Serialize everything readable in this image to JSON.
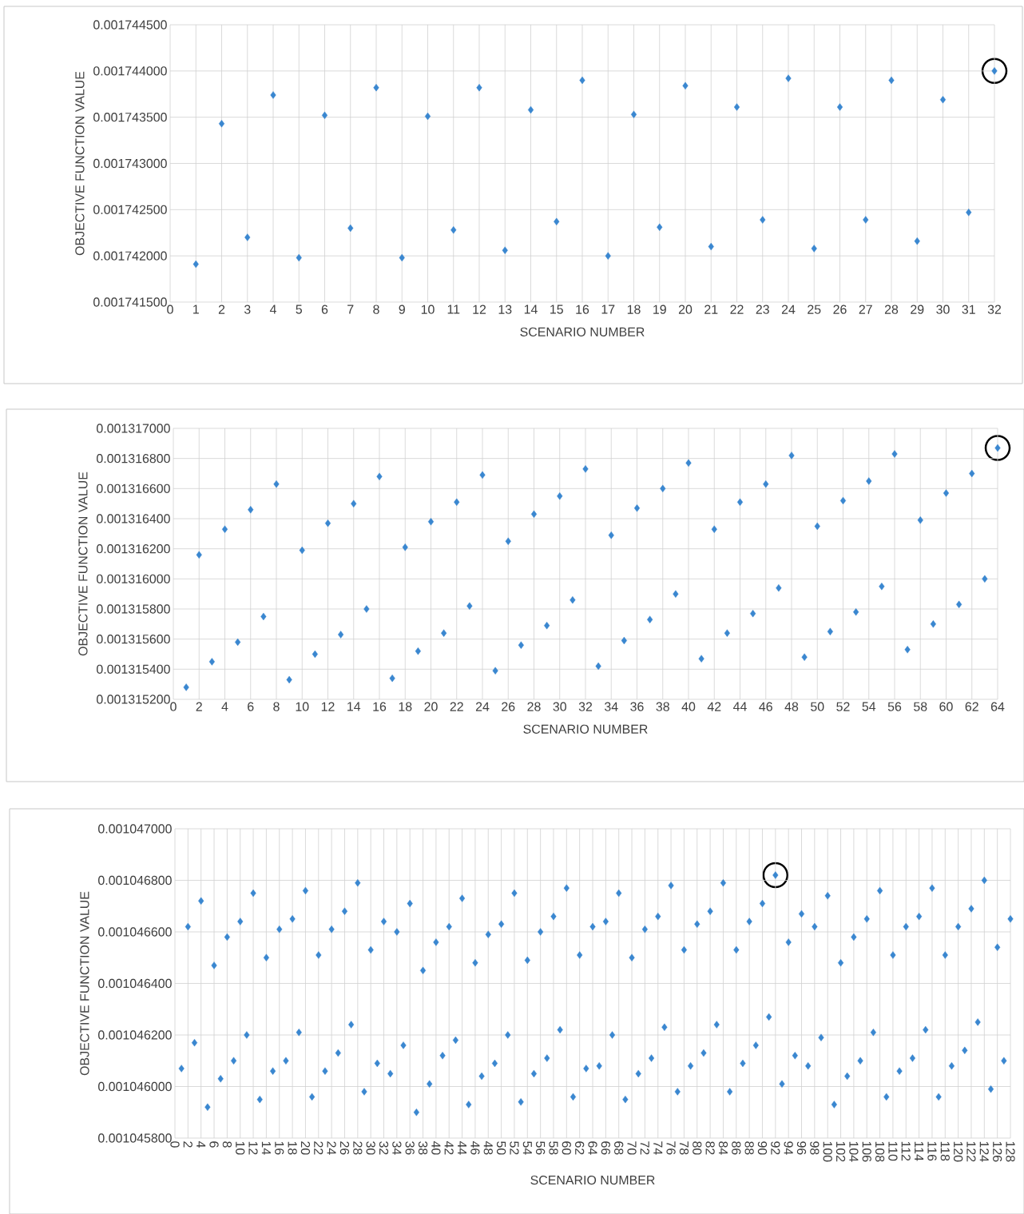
{
  "chart_data": [
    {
      "type": "scatter",
      "xlabel": "SCENARIO NUMBER",
      "ylabel": "OBJECTIVE FUNCTION VALUE",
      "grid": true,
      "marker": "diamond",
      "xlim": [
        0,
        32
      ],
      "xticks": [
        0,
        1,
        2,
        3,
        4,
        5,
        6,
        7,
        8,
        9,
        10,
        11,
        12,
        13,
        14,
        15,
        16,
        17,
        18,
        19,
        20,
        21,
        22,
        23,
        24,
        25,
        26,
        27,
        28,
        29,
        30,
        31,
        32
      ],
      "ylim": [
        0.0017415,
        0.0017445
      ],
      "yticks": [
        {
          "value": 0.0017415,
          "label": "0.001741500"
        },
        {
          "value": 0.001742,
          "label": "0.001742000"
        },
        {
          "value": 0.0017425,
          "label": "0.001742500"
        },
        {
          "value": 0.001743,
          "label": "0.001743000"
        },
        {
          "value": 0.0017435,
          "label": "0.001743500"
        },
        {
          "value": 0.001744,
          "label": "0.001744000"
        },
        {
          "value": 0.0017445,
          "label": "0.001744500"
        }
      ],
      "x": [
        1,
        2,
        3,
        4,
        5,
        6,
        7,
        8,
        9,
        10,
        11,
        12,
        13,
        14,
        15,
        16,
        17,
        18,
        19,
        20,
        21,
        22,
        23,
        24,
        25,
        26,
        27,
        28,
        29,
        30,
        31,
        32
      ],
      "series": [
        {
          "color": "#3a87d0",
          "values": [
            0.00174191,
            0.00174343,
            0.0017422,
            0.00174374,
            0.00174198,
            0.00174352,
            0.0017423,
            0.00174382,
            0.00174198,
            0.00174351,
            0.00174228,
            0.00174382,
            0.00174206,
            0.00174358,
            0.00174237,
            0.0017439,
            0.001742,
            0.00174353,
            0.00174231,
            0.00174384,
            0.0017421,
            0.00174361,
            0.00174239,
            0.00174392,
            0.00174208,
            0.00174361,
            0.00174239,
            0.0017439,
            0.00174216,
            0.00174369,
            0.00174247,
            0.001744
          ]
        }
      ]
    },
    {
      "type": "scatter",
      "xlabel": "SCENARIO NUMBER",
      "ylabel": "OBJECTIVE FUNCTION VALUE",
      "grid": true,
      "marker": "diamond",
      "xlim": [
        0,
        64
      ],
      "xticks": [
        0,
        2,
        4,
        6,
        8,
        10,
        12,
        14,
        16,
        18,
        20,
        22,
        24,
        26,
        28,
        30,
        32,
        34,
        36,
        38,
        40,
        42,
        44,
        46,
        48,
        50,
        52,
        54,
        56,
        58,
        60,
        62,
        64
      ],
      "ylim": [
        0.0013152,
        0.001317
      ],
      "yticks": [
        {
          "value": 0.0013152,
          "label": "0.001315200"
        },
        {
          "value": 0.0013154,
          "label": "0.001315400"
        },
        {
          "value": 0.0013156,
          "label": "0.001315600"
        },
        {
          "value": 0.0013158,
          "label": "0.001315800"
        },
        {
          "value": 0.001316,
          "label": "0.001316000"
        },
        {
          "value": 0.0013162,
          "label": "0.001316200"
        },
        {
          "value": 0.0013164,
          "label": "0.001316400"
        },
        {
          "value": 0.0013166,
          "label": "0.001316600"
        },
        {
          "value": 0.0013168,
          "label": "0.001316800"
        },
        {
          "value": 0.001317,
          "label": "0.001317000"
        }
      ],
      "x": [
        1,
        2,
        3,
        4,
        5,
        6,
        7,
        8,
        9,
        10,
        11,
        12,
        13,
        14,
        15,
        16,
        17,
        18,
        19,
        20,
        21,
        22,
        23,
        24,
        25,
        26,
        27,
        28,
        29,
        30,
        31,
        32,
        33,
        34,
        35,
        36,
        37,
        38,
        39,
        40,
        41,
        42,
        43,
        44,
        45,
        46,
        47,
        48,
        49,
        50,
        51,
        52,
        53,
        54,
        55,
        56,
        57,
        58,
        59,
        60,
        61,
        62,
        63,
        64
      ],
      "series": [
        {
          "color": "#3a87d0",
          "values": [
            0.00131528,
            0.00131616,
            0.00131545,
            0.00131633,
            0.00131558,
            0.00131646,
            0.00131575,
            0.00131663,
            0.00131533,
            0.00131619,
            0.0013155,
            0.00131637,
            0.00131563,
            0.0013165,
            0.0013158,
            0.00131668,
            0.00131534,
            0.00131621,
            0.00131552,
            0.00131638,
            0.00131564,
            0.00131651,
            0.00131582,
            0.00131669,
            0.00131539,
            0.00131625,
            0.00131556,
            0.00131643,
            0.00131569,
            0.00131655,
            0.00131586,
            0.00131673,
            0.00131542,
            0.00131629,
            0.00131559,
            0.00131647,
            0.00131573,
            0.0013166,
            0.0013159,
            0.00131677,
            0.00131547,
            0.00131633,
            0.00131564,
            0.00131651,
            0.00131577,
            0.00131663,
            0.00131594,
            0.00131682,
            0.00131548,
            0.00131635,
            0.00131565,
            0.00131652,
            0.00131578,
            0.00131665,
            0.00131595,
            0.00131683,
            0.00131553,
            0.00131639,
            0.0013157,
            0.00131657,
            0.00131583,
            0.0013167,
            0.001316,
            0.00131687
          ]
        }
      ]
    },
    {
      "type": "scatter",
      "xlabel": "SCENARIO NUMBER",
      "ylabel": "OBJECTIVE FUNCTION VALUE",
      "grid": true,
      "marker": "diamond",
      "xlim": [
        0,
        128
      ],
      "xticks": [
        0,
        2,
        4,
        6,
        8,
        10,
        12,
        14,
        16,
        18,
        20,
        22,
        24,
        26,
        28,
        30,
        32,
        34,
        36,
        38,
        40,
        42,
        44,
        46,
        48,
        50,
        52,
        54,
        56,
        58,
        60,
        62,
        64,
        66,
        68,
        70,
        72,
        74,
        76,
        78,
        80,
        82,
        84,
        86,
        88,
        90,
        92,
        94,
        96,
        98,
        100,
        102,
        104,
        106,
        108,
        110,
        112,
        114,
        116,
        118,
        120,
        122,
        124,
        126,
        128
      ],
      "ylim": [
        0.0010458,
        0.001047
      ],
      "yticks": [
        {
          "value": 0.0010458,
          "label": "0.001045800"
        },
        {
          "value": 0.001046,
          "label": "0.001046000"
        },
        {
          "value": 0.0010462,
          "label": "0.001046200"
        },
        {
          "value": 0.0010464,
          "label": "0.001046400"
        },
        {
          "value": 0.0010466,
          "label": "0.001046600"
        },
        {
          "value": 0.0010468,
          "label": "0.001046800"
        },
        {
          "value": 0.001047,
          "label": "0.001047000"
        }
      ],
      "x": [
        1,
        2,
        3,
        4,
        5,
        6,
        7,
        8,
        9,
        10,
        11,
        12,
        13,
        14,
        15,
        16,
        17,
        18,
        19,
        20,
        21,
        22,
        23,
        24,
        25,
        26,
        27,
        28,
        29,
        30,
        31,
        32,
        33,
        34,
        35,
        36,
        37,
        38,
        39,
        40,
        41,
        42,
        43,
        44,
        45,
        46,
        47,
        48,
        49,
        50,
        51,
        52,
        53,
        54,
        55,
        56,
        57,
        58,
        59,
        60,
        61,
        62,
        63,
        64,
        65,
        66,
        67,
        68,
        69,
        70,
        71,
        72,
        73,
        74,
        75,
        76,
        77,
        78,
        79,
        80,
        81,
        82,
        83,
        84,
        85,
        86,
        87,
        88,
        89,
        90,
        91,
        92,
        93,
        94,
        95,
        96,
        97,
        98,
        99,
        100,
        101,
        102,
        103,
        104,
        105,
        106,
        107,
        108,
        109,
        110,
        111,
        112,
        113,
        114,
        115,
        116,
        117,
        118,
        119,
        120,
        121,
        122,
        123,
        124,
        125,
        126,
        127,
        128
      ],
      "series": [
        {
          "color": "#3a87d0",
          "values": [
            0.00104607,
            0.00104662,
            0.00104617,
            0.00104672,
            0.00104592,
            0.00104647,
            0.00104603,
            0.00104658,
            0.0010461,
            0.00104664,
            0.0010462,
            0.00104675,
            0.00104595,
            0.0010465,
            0.00104606,
            0.00104661,
            0.0010461,
            0.00104665,
            0.00104621,
            0.00104676,
            0.00104596,
            0.00104651,
            0.00104606,
            0.00104661,
            0.00104613,
            0.00104668,
            0.00104624,
            0.00104679,
            0.00104598,
            0.00104653,
            0.00104609,
            0.00104664,
            0.00104605,
            0.0010466,
            0.00104616,
            0.00104671,
            0.0010459,
            0.00104645,
            0.00104601,
            0.00104656,
            0.00104612,
            0.00104662,
            0.00104618,
            0.00104673,
            0.00104593,
            0.00104648,
            0.00104604,
            0.00104659,
            0.00104609,
            0.00104663,
            0.0010462,
            0.00104675,
            0.00104594,
            0.00104649,
            0.00104605,
            0.0010466,
            0.00104611,
            0.00104666,
            0.00104622,
            0.00104677,
            0.00104596,
            0.00104651,
            0.00104607,
            0.00104662,
            0.00104608,
            0.00104664,
            0.0010462,
            0.00104675,
            0.00104595,
            0.0010465,
            0.00104605,
            0.00104661,
            0.00104611,
            0.00104666,
            0.00104623,
            0.00104678,
            0.00104598,
            0.00104653,
            0.00104608,
            0.00104663,
            0.00104613,
            0.00104668,
            0.00104624,
            0.00104679,
            0.00104598,
            0.00104653,
            0.00104609,
            0.00104664,
            0.00104616,
            0.00104671,
            0.00104627,
            0.00104682,
            0.00104601,
            0.00104656,
            0.00104612,
            0.00104667,
            0.00104608,
            0.00104662,
            0.00104619,
            0.00104674,
            0.00104593,
            0.00104648,
            0.00104604,
            0.00104658,
            0.0010461,
            0.00104665,
            0.00104621,
            0.00104676,
            0.00104596,
            0.00104651,
            0.00104606,
            0.00104662,
            0.00104611,
            0.00104666,
            0.00104622,
            0.00104677,
            0.00104596,
            0.00104651,
            0.00104608,
            0.00104662,
            0.00104614,
            0.00104669,
            0.00104625,
            0.0010468,
            0.00104599,
            0.00104654,
            0.0010461,
            0.00104665
          ]
        }
      ]
    }
  ]
}
